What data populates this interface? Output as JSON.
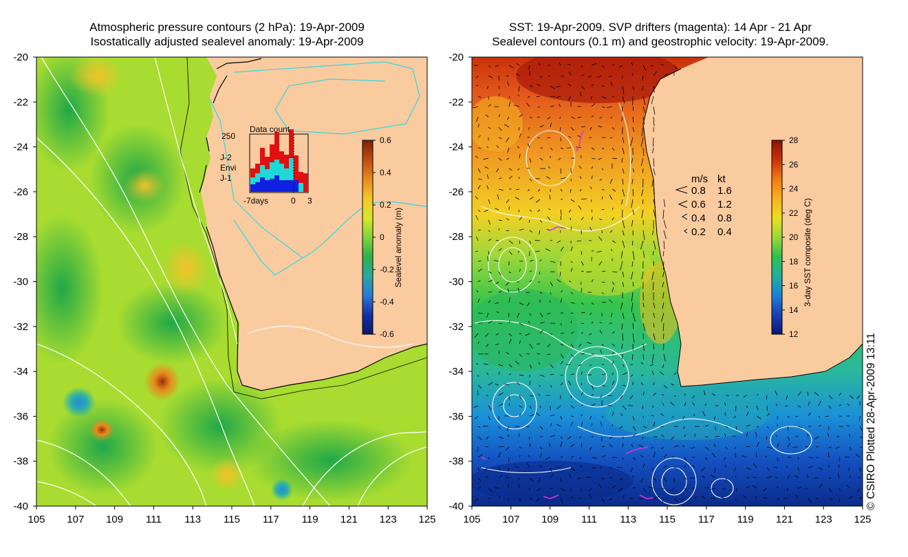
{
  "left_panel": {
    "title_line1": "Atmospheric pressure contours (2 hPa): 19-Apr-2009",
    "title_line2": "Isostatically adjusted sealevel anomaly: 19-Apr-2009",
    "x_ticks": [
      "105",
      "107",
      "109",
      "111",
      "113",
      "115",
      "117",
      "119",
      "121",
      "123",
      "125"
    ],
    "y_ticks": [
      "-20",
      "-22",
      "-24",
      "-26",
      "-28",
      "-30",
      "-32",
      "-34",
      "-36",
      "-38",
      "-40"
    ],
    "colorbar": {
      "label": "Sealevel anomaly (m)",
      "ticks": [
        "0.6",
        "0.4",
        "0.2",
        "0",
        "-0.2",
        "-0.4",
        "-0.6"
      ],
      "colors": [
        "#7a1f08",
        "#c24a12",
        "#e98a1c",
        "#f5c52a",
        "#d9e825",
        "#7ed63a",
        "#2fb04a",
        "#2aa9a0",
        "#2b78d8",
        "#1430a6",
        "#0a1a6e"
      ]
    },
    "inset": {
      "title": "Data count",
      "y_label": "250",
      "x_labels": [
        "-7days",
        "0",
        "3"
      ],
      "satellites": [
        {
          "name": "J-2",
          "color": "#e01010"
        },
        {
          "name": "Envi",
          "color": "#20d8d8"
        },
        {
          "name": "J-1",
          "color": "#1020e0"
        }
      ]
    }
  },
  "right_panel": {
    "title_line1": "SST: 19-Apr-2009. SVP drifters (magenta): 14 Apr - 21 Apr",
    "title_line2": "Sealevel contours (0.1 m) and geostrophic velocity: 19-Apr-2009.",
    "x_ticks": [
      "105",
      "107",
      "109",
      "111",
      "113",
      "115",
      "117",
      "119",
      "121",
      "123",
      "125"
    ],
    "y_ticks": [
      "-20",
      "-22",
      "-24",
      "-26",
      "-28",
      "-30",
      "-32",
      "-34",
      "-36",
      "-38",
      "-40"
    ],
    "colorbar": {
      "label": "3-day SST composite (deg C)",
      "ticks": [
        "28",
        "26",
        "24",
        "22",
        "20",
        "18",
        "16",
        "14",
        "12"
      ],
      "colors": [
        "#8a1208",
        "#c8320a",
        "#f07a16",
        "#f8b21e",
        "#e8e020",
        "#9ad838",
        "#2fc050",
        "#20b0a0",
        "#1a80d8",
        "#1840b8",
        "#0a1a70"
      ]
    },
    "speed_legend": {
      "header_ms": "m/s",
      "header_kt": "kt",
      "rows": [
        {
          "ms": "0.8",
          "kt": "1.6"
        },
        {
          "ms": "0.6",
          "kt": "1.2"
        },
        {
          "ms": "0.4",
          "kt": "0.8"
        },
        {
          "ms": "0.2",
          "kt": "0.4"
        }
      ]
    }
  },
  "colors": {
    "land": "#fbcba0",
    "contour": "#ffffff",
    "coast": "#000000",
    "drifter": "#e030e0",
    "land_contour": "#30d8e0"
  },
  "copyright": "© CSIRO Plotted 28-Apr-2009 13:11"
}
